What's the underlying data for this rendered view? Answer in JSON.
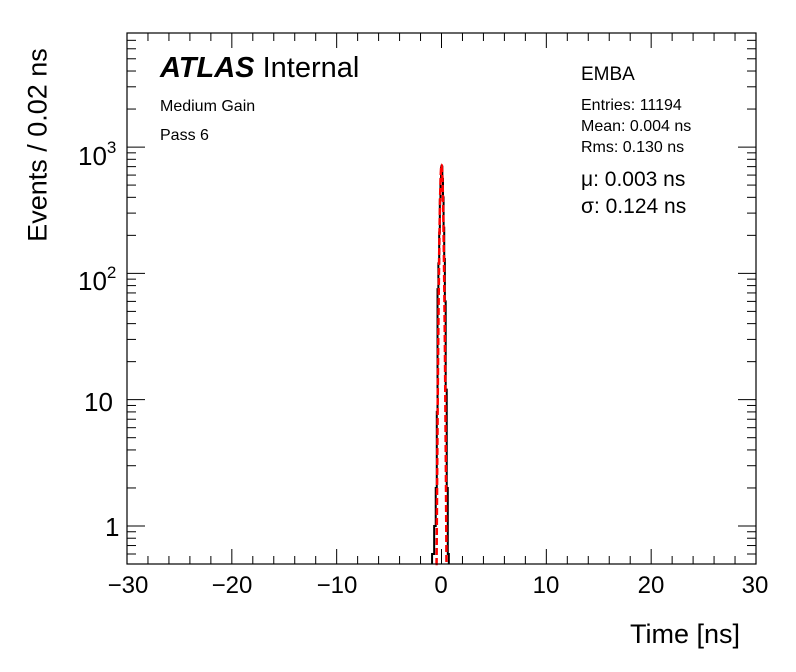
{
  "chart_data": {
    "type": "histogram",
    "xlabel": "Time [ns]",
    "ylabel": "Events / 0.02 ns",
    "xlim": [
      -30,
      30
    ],
    "ylim": [
      0.5,
      8000
    ],
    "yscale": "log",
    "x_ticks": [
      -30,
      -20,
      -10,
      0,
      10,
      20,
      30
    ],
    "x_tick_labels": [
      "−30",
      "−20",
      "−10",
      "0",
      "10",
      "20",
      "30"
    ],
    "y_ticks": [
      1,
      10,
      100,
      1000
    ],
    "y_tick_labels": {
      "t1": "1",
      "t10": "10",
      "t100": "10",
      "t100_exp": "2",
      "t1000": "10",
      "t1000_exp": "3"
    },
    "bin_width": 0.02,
    "histogram": {
      "color": "#000000",
      "bins": [
        [
          -0.9,
          0.6
        ],
        [
          -0.7,
          1.0
        ],
        [
          -0.55,
          2.0
        ],
        [
          -0.45,
          8.0
        ],
        [
          -0.38,
          75.0
        ],
        [
          -0.3,
          120.0
        ],
        [
          -0.22,
          210.0
        ],
        [
          -0.16,
          380.0
        ],
        [
          -0.1,
          560.0
        ],
        [
          -0.04,
          690.0
        ],
        [
          0.0,
          710.0
        ],
        [
          0.04,
          700.0
        ],
        [
          0.08,
          560.0
        ],
        [
          0.14,
          400.0
        ],
        [
          0.2,
          230.0
        ],
        [
          0.26,
          130.0
        ],
        [
          0.32,
          60.0
        ],
        [
          0.4,
          12.0
        ],
        [
          0.5,
          2.0
        ],
        [
          0.6,
          0.6
        ]
      ]
    },
    "fit": {
      "color": "#ff0000",
      "function": "gaussian",
      "mu": 0.003,
      "sigma": 0.124,
      "amplitude": 720
    }
  },
  "labels": {
    "atlas": "ATLAS",
    "internal": "Internal",
    "gain": "Medium Gain",
    "pass": "Pass 6",
    "partition": "EMBA",
    "entries": "Entries: 11194",
    "mean": "Mean: 0.004 ns",
    "rms": "Rms: 0.130 ns",
    "mu": "μ: 0.003 ns",
    "sigma": "σ: 0.124 ns"
  }
}
